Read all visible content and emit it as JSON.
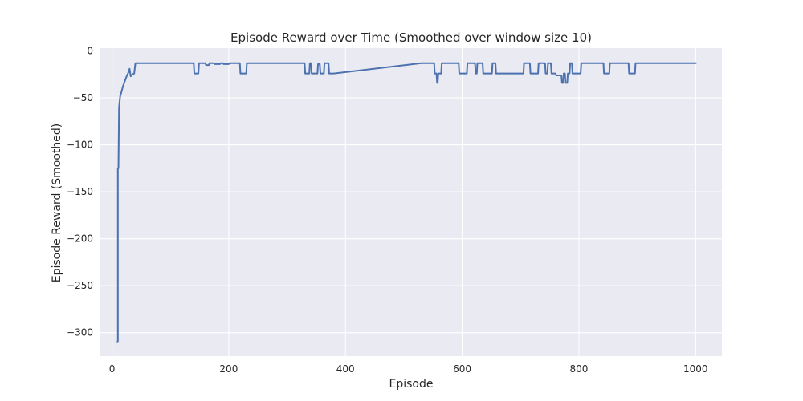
{
  "chart_data": {
    "type": "line",
    "title": "Episode Reward over Time (Smoothed over window size 10)",
    "xlabel": "Episode",
    "ylabel": "Episode Reward (Smoothed)",
    "xlim": [
      -20,
      1045
    ],
    "ylim": [
      -325,
      3
    ],
    "xticks": [
      0,
      200,
      400,
      600,
      800,
      1000
    ],
    "yticks": [
      0,
      -50,
      -100,
      -150,
      -200,
      -250,
      -300
    ],
    "xtick_labels": [
      "0",
      "200",
      "400",
      "600",
      "800",
      "1000"
    ],
    "ytick_labels": [
      "0",
      "−50",
      "−100",
      "−150",
      "−200",
      "−250",
      "−300"
    ],
    "grid": true,
    "background": "#eaeaf2",
    "grid_color": "#ffffff",
    "series": [
      {
        "color": "#4c72b0",
        "x": [
          9,
          10,
          10,
          11,
          12,
          14,
          16,
          19,
          22,
          25,
          28,
          30,
          32,
          35,
          38,
          40,
          60,
          100,
          140,
          141,
          148,
          149,
          160,
          161,
          166,
          167,
          175,
          176,
          185,
          186,
          190,
          191,
          200,
          201,
          219,
          220,
          230,
          231,
          330,
          331,
          338,
          339,
          341,
          342,
          352,
          353,
          356,
          357,
          363,
          364,
          371,
          372,
          380,
          530,
          552,
          553,
          556,
          557,
          558,
          559,
          564,
          565,
          594,
          595,
          608,
          609,
          622,
          623,
          625,
          626,
          635,
          636,
          651,
          652,
          657,
          658,
          705,
          706,
          716,
          717,
          730,
          731,
          742,
          743,
          746,
          747,
          752,
          753,
          760,
          761,
          770,
          771,
          773,
          774,
          776,
          777,
          780,
          781,
          784,
          785,
          788,
          789,
          803,
          804,
          842,
          843,
          852,
          853,
          885,
          886,
          896,
          897,
          960,
          1000
        ],
        "y": [
          -310,
          -310,
          -125,
          -125,
          -60,
          -48,
          -44,
          -37,
          -32,
          -27,
          -23,
          -19,
          -27,
          -25,
          -24,
          -13,
          -13,
          -13,
          -13,
          -24,
          -24,
          -13,
          -13,
          -15,
          -15,
          -13,
          -13,
          -14,
          -14,
          -13,
          -13,
          -14,
          -14,
          -13,
          -13,
          -24,
          -24,
          -13,
          -13,
          -24,
          -24,
          -13,
          -13,
          -24,
          -24,
          -14,
          -14,
          -24,
          -24,
          -13,
          -13,
          -24,
          -24,
          -13,
          -13,
          -24,
          -24,
          -34,
          -34,
          -24,
          -24,
          -13,
          -13,
          -24,
          -24,
          -13,
          -13,
          -24,
          -24,
          -13,
          -13,
          -24,
          -24,
          -13,
          -13,
          -24,
          -24,
          -13,
          -13,
          -24,
          -24,
          -13,
          -13,
          -24,
          -24,
          -13,
          -13,
          -24,
          -24,
          -26,
          -26,
          -34,
          -34,
          -24,
          -24,
          -34,
          -34,
          -24,
          -24,
          -13,
          -13,
          -24,
          -24,
          -13,
          -13,
          -24,
          -24,
          -13,
          -13,
          -24,
          -24,
          -13,
          -13,
          -13
        ]
      }
    ]
  }
}
